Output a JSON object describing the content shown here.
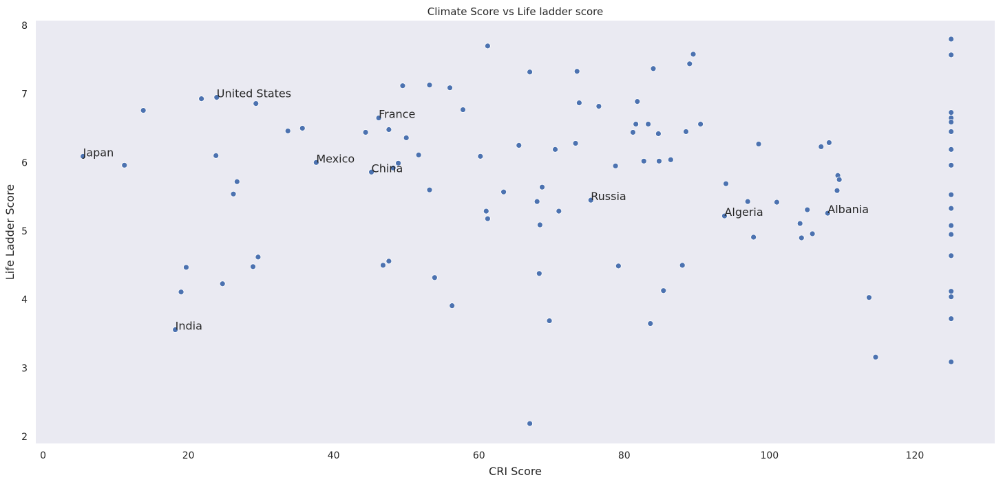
{
  "chart_data": {
    "type": "scatter",
    "title": "Climate Score vs Life ladder score",
    "xlabel": "CRI Score",
    "ylabel": "Life Ladder Score",
    "xlim": [
      -1,
      131
    ],
    "ylim": [
      1.9,
      8.07
    ],
    "xticks": [
      0,
      20,
      40,
      60,
      80,
      100,
      120
    ],
    "yticks": [
      2,
      3,
      4,
      5,
      6,
      7,
      8
    ],
    "grid": false,
    "colors": {
      "background": "#eaeaf2",
      "points": "#4c72b0"
    },
    "points": [
      [
        5.5,
        6.09
      ],
      [
        11.2,
        5.96
      ],
      [
        13.8,
        6.76
      ],
      [
        18.2,
        3.56
      ],
      [
        19.0,
        4.11
      ],
      [
        19.7,
        4.47
      ],
      [
        21.8,
        6.93
      ],
      [
        23.8,
        6.1
      ],
      [
        23.9,
        6.95
      ],
      [
        24.7,
        4.23
      ],
      [
        26.2,
        5.54
      ],
      [
        26.7,
        5.72
      ],
      [
        28.9,
        4.48
      ],
      [
        29.3,
        6.86
      ],
      [
        29.6,
        4.62
      ],
      [
        33.7,
        6.46
      ],
      [
        35.7,
        6.5
      ],
      [
        37.6,
        6.0
      ],
      [
        44.4,
        6.44
      ],
      [
        45.2,
        5.86
      ],
      [
        46.2,
        6.65
      ],
      [
        46.8,
        4.5
      ],
      [
        47.6,
        4.56
      ],
      [
        47.6,
        6.48
      ],
      [
        48.2,
        5.92
      ],
      [
        48.9,
        5.99
      ],
      [
        49.5,
        7.12
      ],
      [
        50.0,
        6.36
      ],
      [
        51.7,
        6.11
      ],
      [
        53.2,
        7.13
      ],
      [
        53.2,
        5.6
      ],
      [
        53.9,
        4.32
      ],
      [
        56.0,
        7.09
      ],
      [
        56.3,
        3.91
      ],
      [
        57.8,
        6.77
      ],
      [
        60.2,
        6.09
      ],
      [
        61.0,
        5.29
      ],
      [
        61.2,
        7.7
      ],
      [
        61.2,
        5.18
      ],
      [
        63.4,
        5.57
      ],
      [
        65.5,
        6.25
      ],
      [
        67.0,
        7.32
      ],
      [
        67.0,
        2.19
      ],
      [
        68.0,
        5.43
      ],
      [
        68.3,
        4.38
      ],
      [
        68.4,
        5.09
      ],
      [
        68.7,
        5.64
      ],
      [
        69.7,
        3.69
      ],
      [
        70.5,
        6.19
      ],
      [
        71.0,
        5.29
      ],
      [
        73.3,
        6.28
      ],
      [
        73.5,
        7.33
      ],
      [
        73.8,
        6.87
      ],
      [
        75.4,
        5.45
      ],
      [
        76.5,
        6.82
      ],
      [
        78.8,
        5.95
      ],
      [
        79.2,
        4.49
      ],
      [
        81.2,
        6.44
      ],
      [
        81.6,
        6.56
      ],
      [
        81.8,
        6.89
      ],
      [
        82.7,
        6.02
      ],
      [
        83.3,
        6.56
      ],
      [
        83.6,
        3.65
      ],
      [
        84.0,
        7.37
      ],
      [
        84.7,
        6.42
      ],
      [
        84.8,
        6.02
      ],
      [
        85.4,
        4.13
      ],
      [
        86.4,
        6.04
      ],
      [
        88.0,
        4.5
      ],
      [
        88.5,
        6.45
      ],
      [
        89.0,
        7.44
      ],
      [
        89.5,
        7.58
      ],
      [
        90.5,
        6.56
      ],
      [
        93.8,
        5.22
      ],
      [
        94.0,
        5.69
      ],
      [
        97.0,
        5.43
      ],
      [
        97.8,
        4.91
      ],
      [
        98.5,
        6.27
      ],
      [
        101.0,
        5.42
      ],
      [
        104.2,
        5.11
      ],
      [
        104.4,
        4.9
      ],
      [
        105.2,
        5.31
      ],
      [
        105.9,
        4.96
      ],
      [
        107.1,
        6.23
      ],
      [
        108.0,
        5.26
      ],
      [
        108.2,
        6.29
      ],
      [
        109.3,
        5.59
      ],
      [
        109.4,
        5.81
      ],
      [
        109.6,
        5.75
      ],
      [
        113.7,
        4.03
      ],
      [
        114.6,
        3.16
      ],
      [
        125.0,
        7.8
      ],
      [
        125.0,
        7.57
      ],
      [
        125.0,
        6.73
      ],
      [
        125.0,
        6.65
      ],
      [
        125.0,
        6.59
      ],
      [
        125.0,
        6.45
      ],
      [
        125.0,
        6.19
      ],
      [
        125.0,
        5.96
      ],
      [
        125.0,
        5.53
      ],
      [
        125.0,
        5.33
      ],
      [
        125.0,
        5.08
      ],
      [
        125.0,
        4.95
      ],
      [
        125.0,
        4.64
      ],
      [
        125.0,
        4.12
      ],
      [
        125.0,
        4.04
      ],
      [
        125.0,
        3.72
      ],
      [
        125.0,
        3.09
      ]
    ],
    "annotations": [
      {
        "label": "Japan",
        "x": 5.5,
        "y": 6.09
      },
      {
        "label": "United States",
        "x": 23.9,
        "y": 6.95
      },
      {
        "label": "France",
        "x": 46.2,
        "y": 6.65
      },
      {
        "label": "Mexico",
        "x": 37.6,
        "y": 6.0
      },
      {
        "label": "China",
        "x": 45.2,
        "y": 5.86
      },
      {
        "label": "Russia",
        "x": 75.4,
        "y": 5.45
      },
      {
        "label": "Algeria",
        "x": 93.8,
        "y": 5.22
      },
      {
        "label": "Albania",
        "x": 108.0,
        "y": 5.26
      },
      {
        "label": "India",
        "x": 18.2,
        "y": 3.56
      }
    ]
  }
}
